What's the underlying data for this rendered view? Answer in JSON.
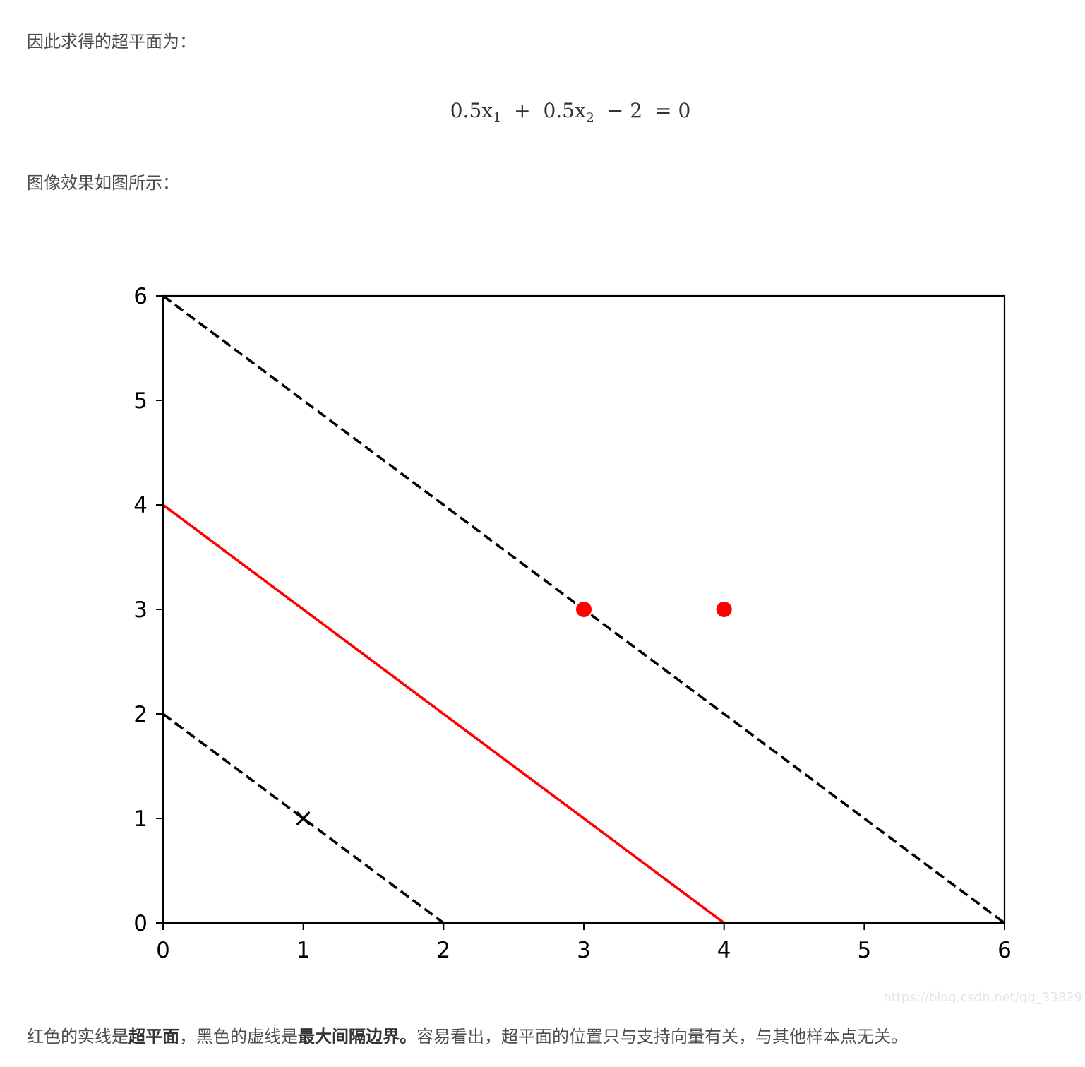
{
  "intro_text": "因此求得的超平面为：",
  "formula": {
    "term1_coef": "0.5x",
    "term1_sub": "1",
    "plus": "+",
    "term2_coef": "0.5x",
    "term2_sub": "2",
    "minus": "−",
    "constant": "2",
    "equals": "=",
    "rhs": "0"
  },
  "figure_intro": "图像效果如图所示：",
  "chart_data": {
    "type": "line",
    "xlim": [
      0,
      6
    ],
    "ylim": [
      0,
      6
    ],
    "xticks": [
      "0",
      "1",
      "2",
      "3",
      "4",
      "5",
      "6"
    ],
    "yticks": [
      "0",
      "1",
      "2",
      "3",
      "4",
      "5",
      "6"
    ],
    "grid": false,
    "series": [
      {
        "style": "solid",
        "color": "#ff0000",
        "x": [
          0,
          4
        ],
        "y": [
          4,
          0
        ]
      },
      {
        "style": "dashed",
        "color": "#000000",
        "x": [
          0,
          6
        ],
        "y": [
          6,
          0
        ]
      },
      {
        "style": "dashed",
        "color": "#000000",
        "x": [
          0,
          2
        ],
        "y": [
          2,
          0
        ]
      }
    ],
    "points": [
      {
        "x": 3,
        "y": 3,
        "marker": "circle",
        "color": "#ff0000"
      },
      {
        "x": 4,
        "y": 3,
        "marker": "circle",
        "color": "#ff0000"
      },
      {
        "x": 1,
        "y": 1,
        "marker": "cross",
        "color": "#000000"
      }
    ]
  },
  "watermark": "https://blog.csdn.net/qq_33829",
  "conclusion": {
    "part1": "红色的实线是",
    "bold1": "超平面",
    "part2": "，黑色的虚线是",
    "bold2": "最大间隔边界",
    "bold2_period": "。",
    "part3": "容易看出，超平面的位置只与支持向量有关，与其他样本点无关。"
  }
}
